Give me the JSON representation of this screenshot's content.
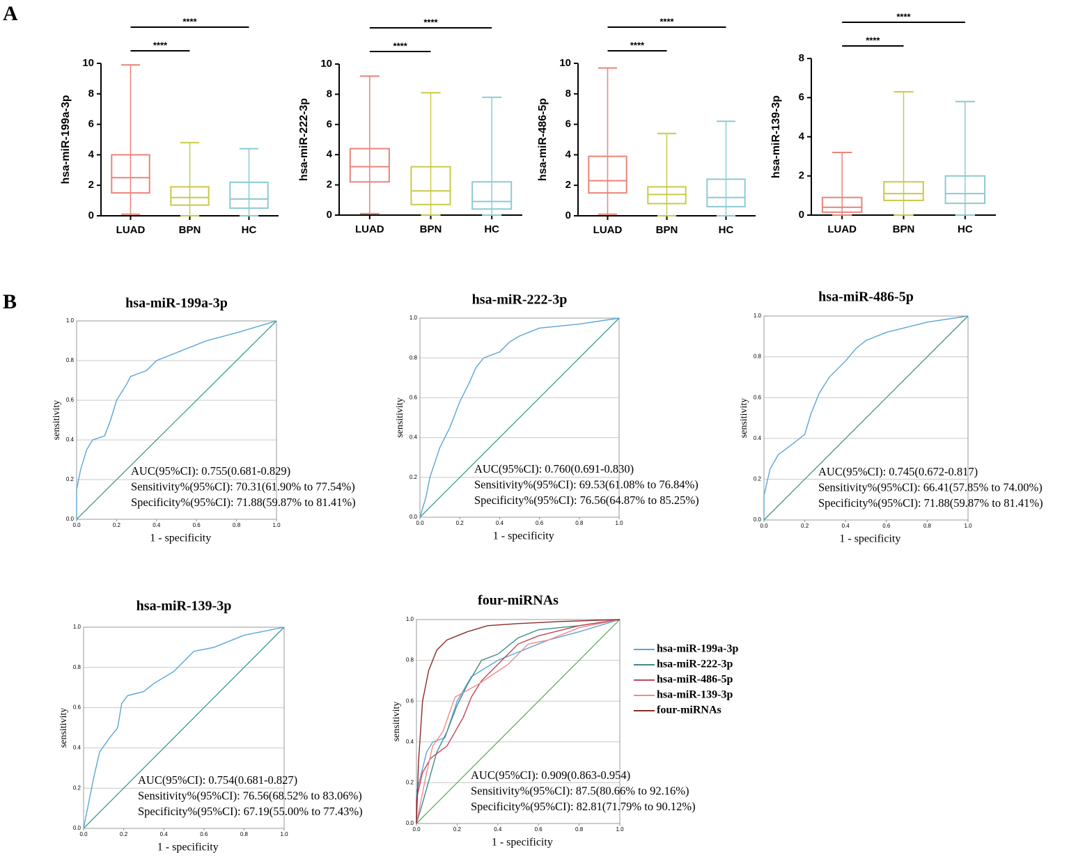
{
  "panel_labels": [
    "A",
    "B"
  ],
  "chart_data": [
    {
      "type": "box",
      "y_label": "hsa-miR-199a-3p",
      "categories": [
        "LUAD",
        "BPN",
        "HC"
      ],
      "colors": [
        "#e8847a",
        "#c9c94a",
        "#8ccad4"
      ],
      "boxes": [
        {
          "min": 0.1,
          "q1": 1.5,
          "median": 2.5,
          "q3": 4.0,
          "max": 9.9
        },
        {
          "min": 0,
          "q1": 0.7,
          "median": 1.2,
          "q3": 1.9,
          "max": 4.8
        },
        {
          "min": 0,
          "q1": 0.5,
          "median": 1.1,
          "q3": 2.2,
          "max": 4.4
        }
      ],
      "ylim": [
        0,
        10
      ],
      "yticks": [
        0,
        2,
        4,
        6,
        8,
        10
      ],
      "comparisons": [
        {
          "groups": [
            "LUAD",
            "BPN"
          ],
          "label": "****"
        },
        {
          "groups": [
            "LUAD",
            "HC"
          ],
          "label": "****"
        }
      ]
    },
    {
      "type": "box",
      "y_label": "hsa-miR-222-3p",
      "categories": [
        "LUAD",
        "BPN",
        "HC"
      ],
      "colors": [
        "#e8847a",
        "#c9c94a",
        "#8ccad4"
      ],
      "boxes": [
        {
          "min": 0.1,
          "q1": 2.2,
          "median": 3.2,
          "q3": 4.4,
          "max": 9.2
        },
        {
          "min": 0,
          "q1": 0.7,
          "median": 1.6,
          "q3": 3.2,
          "max": 8.1
        },
        {
          "min": 0,
          "q1": 0.4,
          "median": 0.9,
          "q3": 2.2,
          "max": 7.8
        }
      ],
      "ylim": [
        0,
        10
      ],
      "yticks": [
        0,
        2,
        4,
        6,
        8,
        10
      ],
      "comparisons": [
        {
          "groups": [
            "LUAD",
            "BPN"
          ],
          "label": "****"
        },
        {
          "groups": [
            "LUAD",
            "HC"
          ],
          "label": "****"
        }
      ]
    },
    {
      "type": "box",
      "y_label": "hsa-miR-486-5p",
      "categories": [
        "LUAD",
        "BPN",
        "HC"
      ],
      "colors": [
        "#e8847a",
        "#c9c94a",
        "#8ccad4"
      ],
      "boxes": [
        {
          "min": 0.1,
          "q1": 1.5,
          "median": 2.3,
          "q3": 3.9,
          "max": 9.7
        },
        {
          "min": 0,
          "q1": 0.8,
          "median": 1.4,
          "q3": 1.9,
          "max": 5.4
        },
        {
          "min": 0,
          "q1": 0.6,
          "median": 1.2,
          "q3": 2.4,
          "max": 6.2
        }
      ],
      "ylim": [
        0,
        10
      ],
      "yticks": [
        0,
        2,
        4,
        6,
        8,
        10
      ],
      "comparisons": [
        {
          "groups": [
            "LUAD",
            "BPN"
          ],
          "label": "****"
        },
        {
          "groups": [
            "LUAD",
            "HC"
          ],
          "label": "****"
        }
      ]
    },
    {
      "type": "box",
      "y_label": "hsa-miR-139-3p",
      "categories": [
        "LUAD",
        "BPN",
        "HC"
      ],
      "colors": [
        "#e8847a",
        "#c9c94a",
        "#8ccad4"
      ],
      "boxes": [
        {
          "min": 0,
          "q1": 0.15,
          "median": 0.4,
          "q3": 0.9,
          "max": 3.2
        },
        {
          "min": 0,
          "q1": 0.75,
          "median": 1.1,
          "q3": 1.7,
          "max": 6.3
        },
        {
          "min": 0,
          "q1": 0.6,
          "median": 1.1,
          "q3": 2.0,
          "max": 5.8
        }
      ],
      "ylim": [
        0,
        8
      ],
      "yticks": [
        0,
        2,
        4,
        6,
        8
      ],
      "comparisons": [
        {
          "groups": [
            "LUAD",
            "BPN"
          ],
          "label": "****"
        },
        {
          "groups": [
            "LUAD",
            "HC"
          ],
          "label": "****"
        }
      ]
    },
    {
      "type": "line",
      "title": "hsa-miR-199a-3p",
      "x_label": "1 - specificity",
      "y_label": "sensitivity",
      "xlim": [
        0,
        1
      ],
      "ylim": [
        0,
        1
      ],
      "grid": true,
      "diagonal_color": "#3a9a8a",
      "xticks": [
        {
          "value": 0,
          "label": "0.0"
        },
        {
          "value": 0.2,
          "label": "0.2"
        },
        {
          "value": 0.4,
          "label": "0.4"
        },
        {
          "value": 0.6,
          "label": "0.6"
        },
        {
          "value": 0.8,
          "label": "0.8"
        },
        {
          "value": 1,
          "label": "1.0"
        }
      ],
      "yticks": [
        {
          "value": 0,
          "label": "0.0"
        },
        {
          "value": 0.2,
          "label": "0.2"
        },
        {
          "value": 0.4,
          "label": "0.4"
        },
        {
          "value": 0.6,
          "label": "0.6"
        },
        {
          "value": 0.8,
          "label": "0.8"
        },
        {
          "value": 1,
          "label": "1.0"
        }
      ],
      "series": [
        {
          "color": "#5aa5d6",
          "x": [
            0,
            0,
            0.02,
            0.05,
            0.08,
            0.14,
            0.17,
            0.2,
            0.25,
            0.27,
            0.35,
            0.4,
            0.5,
            0.6,
            0.65,
            0.8,
            0.9,
            1
          ],
          "y": [
            0,
            0.15,
            0.25,
            0.35,
            0.4,
            0.42,
            0.5,
            0.6,
            0.68,
            0.72,
            0.75,
            0.8,
            0.84,
            0.88,
            0.9,
            0.94,
            0.97,
            1
          ]
        }
      ],
      "annotations": [
        "AUC(95%CI): 0.755(0.681-0.829)",
        "Sensitivity%(95%CI): 70.31(61.90% to 77.54%)",
        "Specificity%(95%CI): 71.88(59.87% to 81.41%)"
      ]
    },
    {
      "type": "line",
      "title": "hsa-miR-222-3p",
      "x_label": "1 - specificity",
      "y_label": "sensitivity",
      "xlim": [
        0,
        1
      ],
      "ylim": [
        0,
        1
      ],
      "grid": true,
      "diagonal_color": "#3a9a8a",
      "xticks": [
        {
          "value": 0,
          "label": "0.0"
        },
        {
          "value": 0.2,
          "label": "0.2"
        },
        {
          "value": 0.4,
          "label": "0.4"
        },
        {
          "value": 0.6,
          "label": "0.6"
        },
        {
          "value": 0.8,
          "label": "0.8"
        },
        {
          "value": 1,
          "label": "1.0"
        }
      ],
      "yticks": [
        {
          "value": 0,
          "label": "0.0"
        },
        {
          "value": 0.2,
          "label": "0.2"
        },
        {
          "value": 0.4,
          "label": "0.4"
        },
        {
          "value": 0.6,
          "label": "0.6"
        },
        {
          "value": 0.8,
          "label": "0.8"
        },
        {
          "value": 1,
          "label": "1.0"
        }
      ],
      "series": [
        {
          "color": "#5aa5d6",
          "x": [
            0,
            0.03,
            0.05,
            0.1,
            0.15,
            0.2,
            0.25,
            0.28,
            0.32,
            0.4,
            0.45,
            0.5,
            0.6,
            0.8,
            1
          ],
          "y": [
            0,
            0.1,
            0.2,
            0.35,
            0.45,
            0.58,
            0.68,
            0.75,
            0.8,
            0.83,
            0.88,
            0.91,
            0.95,
            0.97,
            1
          ]
        }
      ],
      "annotations": [
        "AUC(95%CI): 0.760(0.691-0.830)",
        "Sensitivity%(95%CI): 69.53(61.08% to 76.84%)",
        "Specificity%(95%CI): 76.56(64.87% to 85.25%)"
      ]
    },
    {
      "type": "line",
      "title": "hsa-miR-486-5p",
      "x_label": "1 - specificity",
      "y_label": "sensitivity",
      "xlim": [
        0,
        1
      ],
      "ylim": [
        0,
        1
      ],
      "grid": true,
      "diagonal_color": "#3a9a8a",
      "xticks": [
        {
          "value": 0,
          "label": "0.0"
        },
        {
          "value": 0.2,
          "label": "0.2"
        },
        {
          "value": 0.4,
          "label": "0.4"
        },
        {
          "value": 0.6,
          "label": "0.6"
        },
        {
          "value": 0.8,
          "label": "0.8"
        },
        {
          "value": 1,
          "label": "1.0"
        }
      ],
      "yticks": [
        {
          "value": 0,
          "label": "0.0"
        },
        {
          "value": 0.2,
          "label": "0.2"
        },
        {
          "value": 0.4,
          "label": "0.4"
        },
        {
          "value": 0.6,
          "label": "0.6"
        },
        {
          "value": 0.8,
          "label": "0.8"
        },
        {
          "value": 1,
          "label": "1.0"
        }
      ],
      "series": [
        {
          "color": "#5aa5d6",
          "x": [
            0,
            0,
            0.03,
            0.07,
            0.15,
            0.2,
            0.23,
            0.27,
            0.32,
            0.4,
            0.45,
            0.5,
            0.6,
            0.8,
            1
          ],
          "y": [
            0,
            0.12,
            0.25,
            0.32,
            0.38,
            0.42,
            0.52,
            0.62,
            0.7,
            0.78,
            0.84,
            0.88,
            0.92,
            0.97,
            1
          ]
        }
      ],
      "annotations": [
        "AUC(95%CI): 0.745(0.672-0.817)",
        "Sensitivity%(95%CI): 66.41(57.85% to 74.00%)",
        "Specificity%(95%CI): 71.88(59.87% to 81.41%)"
      ]
    },
    {
      "type": "line",
      "title": "hsa-miR-139-3p",
      "x_label": "1 - specificity",
      "y_label": "sensitivity",
      "xlim": [
        0,
        1
      ],
      "ylim": [
        0,
        1
      ],
      "grid": true,
      "diagonal_color": "#3a9a8a",
      "xticks": [
        {
          "value": 0,
          "label": "0.0"
        },
        {
          "value": 0.2,
          "label": "0.2"
        },
        {
          "value": 0.4,
          "label": "0.4"
        },
        {
          "value": 0.6,
          "label": "0.6"
        },
        {
          "value": 0.8,
          "label": "0.8"
        },
        {
          "value": 1,
          "label": "1.0"
        }
      ],
      "yticks": [
        {
          "value": 0,
          "label": "0.0"
        },
        {
          "value": 0.2,
          "label": "0.2"
        },
        {
          "value": 0.4,
          "label": "0.4"
        },
        {
          "value": 0.6,
          "label": "0.6"
        },
        {
          "value": 0.8,
          "label": "0.8"
        },
        {
          "value": 1,
          "label": "1.0"
        }
      ],
      "series": [
        {
          "color": "#5aa5d6",
          "x": [
            0,
            0.02,
            0.05,
            0.08,
            0.13,
            0.17,
            0.19,
            0.22,
            0.3,
            0.35,
            0.45,
            0.55,
            0.65,
            0.8,
            1
          ],
          "y": [
            0,
            0.1,
            0.25,
            0.38,
            0.45,
            0.5,
            0.62,
            0.66,
            0.68,
            0.72,
            0.78,
            0.88,
            0.9,
            0.96,
            1
          ]
        }
      ],
      "annotations": [
        "AUC(95%CI): 0.754(0.681-0.827)",
        "Sensitivity%(95%CI): 76.56(68.52% to 83.06%)",
        "Specificity%(95%CI): 67.19(55.00% to 77.43%)"
      ]
    },
    {
      "type": "line",
      "title": "four-miRNAs",
      "x_label": "1 - specificity",
      "y_label": "sensitivity",
      "xlim": [
        0,
        1
      ],
      "ylim": [
        0,
        1
      ],
      "grid": true,
      "diagonal_color": "#5ab05a",
      "xticks": [
        {
          "value": 0,
          "label": "0.0"
        },
        {
          "value": 0.2,
          "label": "0.2"
        },
        {
          "value": 0.4,
          "label": "0.4"
        },
        {
          "value": 0.6,
          "label": "0.6"
        },
        {
          "value": 0.8,
          "label": "0.8"
        },
        {
          "value": 1,
          "label": "1.0"
        }
      ],
      "yticks": [
        {
          "value": 0,
          "label": "0.0"
        },
        {
          "value": 0.2,
          "label": "0.2"
        },
        {
          "value": 0.4,
          "label": "0.4"
        },
        {
          "value": 0.6,
          "label": "0.6"
        },
        {
          "value": 0.8,
          "label": "0.8"
        },
        {
          "value": 1,
          "label": "1.0"
        }
      ],
      "series": [
        {
          "name": "hsa-miR-199a-3p",
          "color": "#5aa5d6",
          "x": [
            0,
            0,
            0.05,
            0.08,
            0.14,
            0.2,
            0.27,
            0.4,
            0.5,
            0.65,
            0.8,
            1
          ],
          "y": [
            0,
            0.15,
            0.35,
            0.4,
            0.42,
            0.6,
            0.72,
            0.8,
            0.84,
            0.9,
            0.94,
            1
          ]
        },
        {
          "name": "hsa-miR-222-3p",
          "color": "#3f8a8a",
          "x": [
            0,
            0.03,
            0.1,
            0.15,
            0.2,
            0.25,
            0.32,
            0.4,
            0.5,
            0.6,
            0.8,
            1
          ],
          "y": [
            0,
            0.1,
            0.35,
            0.45,
            0.58,
            0.68,
            0.8,
            0.83,
            0.91,
            0.95,
            0.97,
            1
          ]
        },
        {
          "name": "hsa-miR-486-5p",
          "color": "#c0455a",
          "x": [
            0,
            0,
            0.03,
            0.07,
            0.15,
            0.23,
            0.27,
            0.32,
            0.4,
            0.5,
            0.6,
            0.8,
            1
          ],
          "y": [
            0,
            0.12,
            0.25,
            0.32,
            0.38,
            0.52,
            0.62,
            0.7,
            0.78,
            0.88,
            0.92,
            0.97,
            1
          ]
        },
        {
          "name": "hsa-miR-139-3p",
          "color": "#ef8a8a",
          "x": [
            0,
            0.02,
            0.05,
            0.08,
            0.13,
            0.19,
            0.3,
            0.45,
            0.55,
            0.65,
            0.8,
            1
          ],
          "y": [
            0,
            0.1,
            0.25,
            0.38,
            0.45,
            0.62,
            0.68,
            0.78,
            0.88,
            0.9,
            0.96,
            1
          ]
        },
        {
          "name": "four-miRNAs",
          "color": "#8b2a2a",
          "x": [
            0,
            0.01,
            0.03,
            0.06,
            0.1,
            0.15,
            0.25,
            0.35,
            0.5,
            0.7,
            1
          ],
          "y": [
            0,
            0.3,
            0.6,
            0.75,
            0.85,
            0.9,
            0.94,
            0.97,
            0.98,
            0.99,
            1
          ]
        }
      ],
      "annotations": [
        "AUC(95%CI): 0.909(0.863-0.954)",
        "Sensitivity%(95%CI): 87.5(80.66% to 92.16%)",
        "Specificity%(95%CI): 82.81(71.79% to 90.12%)"
      ]
    }
  ]
}
